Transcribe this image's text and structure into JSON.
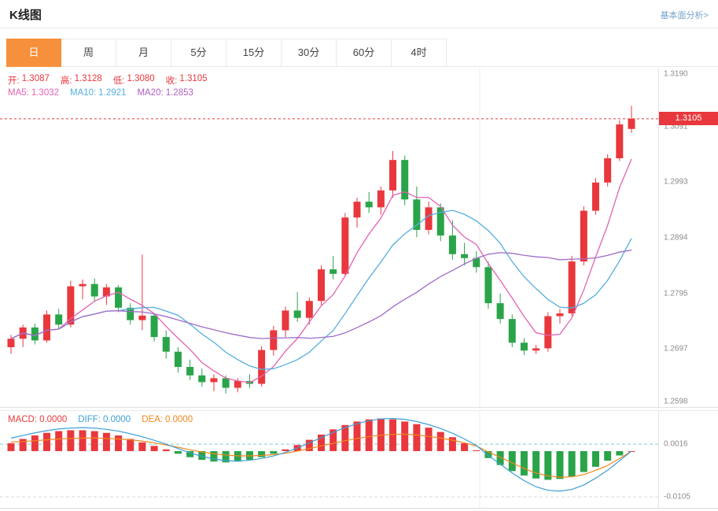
{
  "header": {
    "title": "K线图",
    "link": "基本面分析>"
  },
  "tabs": {
    "items": [
      {
        "label": "日",
        "active": true
      },
      {
        "label": "周",
        "active": false
      },
      {
        "label": "月",
        "active": false
      },
      {
        "label": "5分",
        "active": false
      },
      {
        "label": "15分",
        "active": false
      },
      {
        "label": "30分",
        "active": false
      },
      {
        "label": "60分",
        "active": false
      },
      {
        "label": "4时",
        "active": false
      }
    ]
  },
  "legend": {
    "ohlc": [
      {
        "label": "开:",
        "value": "1.3087",
        "color": "#e8383d"
      },
      {
        "label": "高:",
        "value": "1.3128",
        "color": "#e8383d"
      },
      {
        "label": "低:",
        "value": "1.3080",
        "color": "#e8383d"
      },
      {
        "label": "收:",
        "value": "1.3105",
        "color": "#e8383d"
      }
    ],
    "ma": [
      {
        "label": "MA5:",
        "value": "1.3032",
        "color": "#e361b2"
      },
      {
        "label": "MA10:",
        "value": "1.2921",
        "color": "#54aede"
      },
      {
        "label": "MA20:",
        "value": "1.2853",
        "color": "#b05fc0"
      }
    ]
  },
  "macd_legend": [
    {
      "label": "MACD:",
      "value": "0.0000",
      "color": "#e8383d"
    },
    {
      "label": "DIFF:",
      "value": "0.0000",
      "color": "#3d9fd8"
    },
    {
      "label": "DEA:",
      "value": "0.0000",
      "color": "#f0871e"
    }
  ],
  "axis": {
    "main_labels": [
      "1.3190",
      "1.3091",
      "1.2993",
      "1.2894",
      "1.2795",
      "1.2697",
      "1.2598"
    ],
    "price_badge": "1.3105",
    "macd_labels": [
      "0.0016",
      "-0.0105"
    ]
  },
  "colors": {
    "up": "#e8383d",
    "down": "#2aa449",
    "accent": "#f7903c",
    "link": "#74a3cc",
    "diff_line": "#3d9fd8",
    "dea_line": "#f0871e",
    "grid": "#ececec",
    "dash_teal": "#7ed0cf",
    "dash_gray": "#d9d9d9"
  },
  "chart_data": [
    {
      "type": "candlestick",
      "interval": "日",
      "ylim": [
        1.2598,
        1.319
      ],
      "y_ticks": [
        1.319,
        1.3091,
        1.2993,
        1.2894,
        1.2795,
        1.2697,
        1.2598
      ],
      "current_price": 1.3105,
      "ohlc_last": {
        "open": 1.3087,
        "high": 1.3128,
        "low": 1.308,
        "close": 1.3105
      },
      "ma": [
        {
          "name": "MA5",
          "period": 5,
          "value": 1.3032,
          "color": "#e361b2"
        },
        {
          "name": "MA10",
          "period": 10,
          "value": 1.2921,
          "color": "#54aede"
        },
        {
          "name": "MA20",
          "period": 20,
          "value": 1.2853,
          "color": "#a06cc8"
        }
      ],
      "candles": [
        [
          1.27,
          1.2722,
          1.2688,
          1.2715
        ],
        [
          1.2715,
          1.274,
          1.27,
          1.2735
        ],
        [
          1.2735,
          1.2742,
          1.2705,
          1.2712
        ],
        [
          1.2712,
          1.2765,
          1.2708,
          1.2758
        ],
        [
          1.2758,
          1.2768,
          1.2732,
          1.274
        ],
        [
          1.274,
          1.2818,
          1.2735,
          1.2808
        ],
        [
          1.2808,
          1.282,
          1.2785,
          1.2812
        ],
        [
          1.2812,
          1.2822,
          1.2782,
          1.279
        ],
        [
          1.279,
          1.2812,
          1.2775,
          1.2806
        ],
        [
          1.2806,
          1.281,
          1.2762,
          1.277
        ],
        [
          1.277,
          1.2778,
          1.274,
          1.2748
        ],
        [
          1.2748,
          1.2864,
          1.273,
          1.2756
        ],
        [
          1.2756,
          1.276,
          1.271,
          1.2718
        ],
        [
          1.2718,
          1.273,
          1.268,
          1.2692
        ],
        [
          1.2692,
          1.27,
          1.2655,
          1.2665
        ],
        [
          1.2665,
          1.2678,
          1.2642,
          1.265
        ],
        [
          1.265,
          1.2662,
          1.263,
          1.2638
        ],
        [
          1.2638,
          1.2652,
          1.2622,
          1.2645
        ],
        [
          1.2645,
          1.265,
          1.2618,
          1.2628
        ],
        [
          1.2628,
          1.2645,
          1.262,
          1.264
        ],
        [
          1.264,
          1.2652,
          1.2628,
          1.2635
        ],
        [
          1.2635,
          1.2702,
          1.263,
          1.2695
        ],
        [
          1.2695,
          1.2738,
          1.2685,
          1.273
        ],
        [
          1.273,
          1.2772,
          1.2718,
          1.2765
        ],
        [
          1.2765,
          1.2798,
          1.2745,
          1.2752
        ],
        [
          1.2752,
          1.2788,
          1.274,
          1.2782
        ],
        [
          1.2782,
          1.2845,
          1.2775,
          1.2838
        ],
        [
          1.2838,
          1.2862,
          1.282,
          1.283
        ],
        [
          1.283,
          1.2938,
          1.2825,
          1.293
        ],
        [
          1.293,
          1.2965,
          1.2912,
          1.2958
        ],
        [
          1.2958,
          1.2975,
          1.2938,
          1.2948
        ],
        [
          1.2948,
          1.2985,
          1.2935,
          1.2978
        ],
        [
          1.2978,
          1.3048,
          1.2965,
          1.3032
        ],
        [
          1.3032,
          1.304,
          1.2952,
          1.2962
        ],
        [
          1.2962,
          1.2985,
          1.2895,
          1.2908
        ],
        [
          1.2908,
          1.2958,
          1.29,
          1.2948
        ],
        [
          1.2948,
          1.2955,
          1.2888,
          1.2898
        ],
        [
          1.2898,
          1.2925,
          1.2855,
          1.2865
        ],
        [
          1.2865,
          1.2885,
          1.2845,
          1.2858
        ],
        [
          1.2858,
          1.287,
          1.2832,
          1.2842
        ],
        [
          1.2842,
          1.2852,
          1.2768,
          1.2778
        ],
        [
          1.2778,
          1.2795,
          1.2742,
          1.275
        ],
        [
          1.275,
          1.2758,
          1.27,
          1.2708
        ],
        [
          1.2708,
          1.2716,
          1.2686,
          1.2694
        ],
        [
          1.2694,
          1.2704,
          1.2688,
          1.2698
        ],
        [
          1.2698,
          1.2762,
          1.2692,
          1.2755
        ],
        [
          1.2755,
          1.2768,
          1.2742,
          1.276
        ],
        [
          1.276,
          1.2862,
          1.2755,
          1.2852
        ],
        [
          1.2852,
          1.295,
          1.2845,
          1.2942
        ],
        [
          1.2942,
          1.3,
          1.2935,
          1.2992
        ],
        [
          1.2992,
          1.3042,
          1.2985,
          1.3035
        ],
        [
          1.3035,
          1.3102,
          1.303,
          1.3095
        ],
        [
          1.3087,
          1.3128,
          1.308,
          1.3105
        ]
      ]
    },
    {
      "type": "bar",
      "name": "MACD",
      "ylim": [
        -0.0125,
        0.0085
      ],
      "gridlines": [
        0.0016,
        -0.0105
      ],
      "values_last": {
        "macd": 0.0,
        "diff": 0.0,
        "dea": 0.0
      },
      "histogram": [
        0.0018,
        0.0028,
        0.0036,
        0.0042,
        0.0046,
        0.0048,
        0.0048,
        0.0046,
        0.0042,
        0.0036,
        0.0028,
        0.002,
        0.0012,
        0.0004,
        -0.0006,
        -0.0014,
        -0.002,
        -0.0024,
        -0.0026,
        -0.0024,
        -0.002,
        -0.0014,
        -0.0006,
        0.0004,
        0.0014,
        0.0026,
        0.0038,
        0.005,
        0.006,
        0.0068,
        0.0073,
        0.0075,
        0.0073,
        0.0068,
        0.0062,
        0.0054,
        0.0044,
        0.0032,
        0.0018,
        0.0002,
        -0.0016,
        -0.0032,
        -0.0046,
        -0.0056,
        -0.0063,
        -0.0066,
        -0.0064,
        -0.0058,
        -0.0048,
        -0.0036,
        -0.0022,
        -0.001,
        0.0
      ],
      "diff": [
        0.003,
        0.0036,
        0.0042,
        0.0047,
        0.0051,
        0.0053,
        0.0054,
        0.0053,
        0.005,
        0.0046,
        0.004,
        0.0033,
        0.0025,
        0.0016,
        0.0006,
        -0.0004,
        -0.0012,
        -0.0018,
        -0.0022,
        -0.0023,
        -0.0021,
        -0.0017,
        -0.0011,
        -0.0003,
        0.0007,
        0.0019,
        0.0031,
        0.0043,
        0.0054,
        0.0063,
        0.007,
        0.0074,
        0.0075,
        0.0073,
        0.0068,
        0.0061,
        0.0052,
        0.0041,
        0.0028,
        0.0013,
        -0.001,
        -0.003,
        -0.005,
        -0.0068,
        -0.0082,
        -0.009,
        -0.0092,
        -0.0088,
        -0.0078,
        -0.0062,
        -0.0044,
        -0.0022,
        0.0
      ]
    }
  ]
}
